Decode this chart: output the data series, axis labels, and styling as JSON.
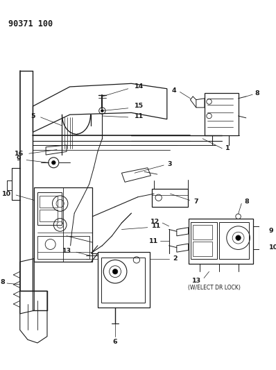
{
  "bg_color": "#ffffff",
  "line_color": "#1a1a1a",
  "diagram_id": "90371 100",
  "fig_width": 3.98,
  "fig_height": 5.33,
  "dpi": 100,
  "label_fontsize": 6.8,
  "label_fontweight": "bold",
  "elect_text": "(W/ELECT DR LOCK)",
  "elect_fontsize": 5.5
}
